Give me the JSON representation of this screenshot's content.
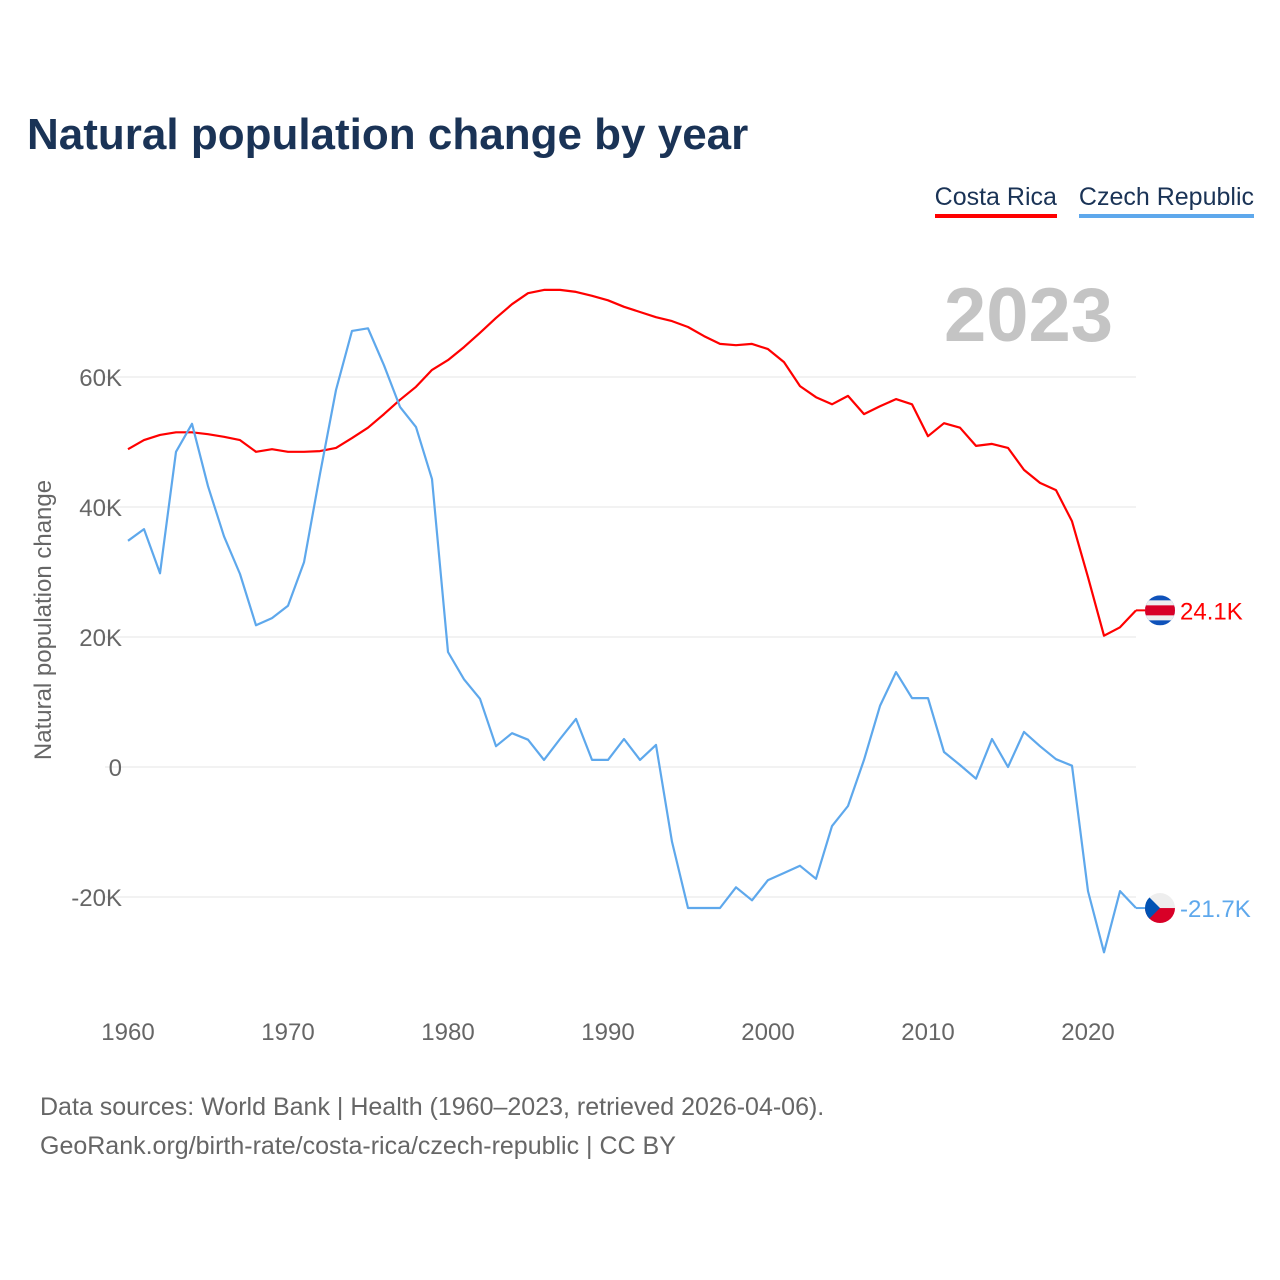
{
  "title": "Natural population change by year",
  "year_label": "2023",
  "footer": {
    "line1": "Data sources: World Bank | Health (1960–2023, retrieved 2026-04-06).",
    "line2": "GeoRank.org/birth-rate/costa-rica/czech-republic | CC BY"
  },
  "chart_data": {
    "type": "line",
    "title": "Natural population change by year",
    "xlabel": "",
    "ylabel": "Natural population change",
    "xlim": [
      1960,
      2023
    ],
    "ylim": [
      -30000,
      75000
    ],
    "x_ticks": [
      1960,
      1970,
      1980,
      1990,
      2000,
      2010,
      2020
    ],
    "y_ticks": [
      -20000,
      0,
      20000,
      40000,
      60000
    ],
    "y_tick_labels": [
      "-20K",
      "0",
      "20K",
      "40K",
      "60K"
    ],
    "grid": true,
    "legend_position": "top-right",
    "series": [
      {
        "name": "Costa Rica",
        "color": "#ff0000",
        "end_label": "24.1K",
        "flag": "costa-rica-flag",
        "values": [
          48900,
          50300,
          51100,
          51500,
          51500,
          51200,
          50800,
          50300,
          48500,
          48900,
          48500,
          48500,
          48600,
          49100,
          50600,
          52200,
          54300,
          56500,
          58500,
          61100,
          62600,
          64600,
          66800,
          69100,
          71200,
          72900,
          73400,
          73400,
          73100,
          72500,
          71800,
          70800,
          70000,
          69200,
          68600,
          67700,
          66300,
          65100,
          64900,
          65100,
          64300,
          62300,
          58600,
          56900,
          55800,
          57100,
          54300,
          55500,
          56600,
          55800,
          50900,
          52900,
          52200,
          49400,
          49700,
          49100,
          45700,
          43700,
          42600,
          37800,
          29200,
          20200,
          21500,
          24100
        ]
      },
      {
        "name": "Czech Republic",
        "color": "#5ea8ec",
        "end_label": "-21.7K",
        "flag": "czech-republic-flag",
        "values": [
          34800,
          36600,
          29800,
          48500,
          52800,
          43200,
          35500,
          29700,
          21800,
          22900,
          24800,
          31500,
          45100,
          58000,
          67100,
          67500,
          61800,
          55400,
          52300,
          44300,
          17700,
          13500,
          10500,
          3200,
          5200,
          4200,
          1100,
          4300,
          7400,
          1100,
          1100,
          4300,
          1100,
          3400,
          -11500,
          -21700,
          -21700,
          -21700,
          -18500,
          -20500,
          -17400,
          -16300,
          -15200,
          -17200,
          -9100,
          -6000,
          1100,
          9400,
          14600,
          10600,
          10600,
          2300,
          300,
          -1800,
          4300,
          0,
          5400,
          3200,
          1200,
          200,
          -19100,
          -28500,
          -19100,
          -21700
        ]
      }
    ]
  }
}
